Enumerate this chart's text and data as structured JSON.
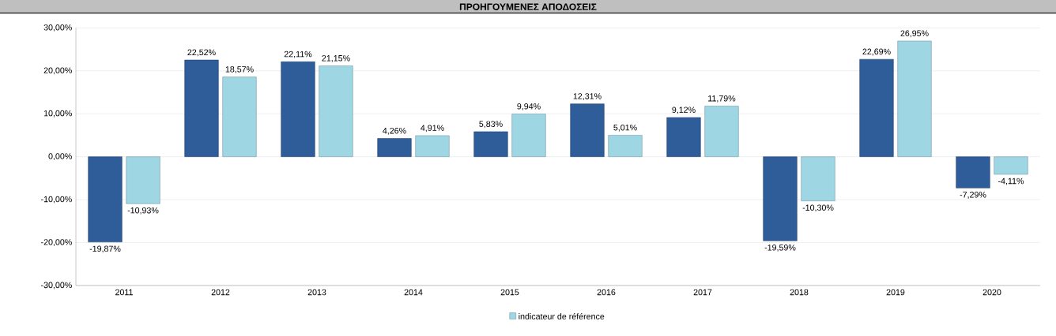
{
  "chart_data": {
    "type": "bar",
    "title": "ΠΡΟΗΓΟΥΜΕΝΕΣ ΑΠΟΔΟΣΕΙΣ",
    "categories": [
      "2011",
      "2012",
      "2013",
      "2014",
      "2015",
      "2016",
      "2017",
      "2018",
      "2019",
      "2020"
    ],
    "series": [
      {
        "color": "#2e5d9a",
        "values": [
          -19.87,
          22.52,
          22.11,
          4.26,
          5.83,
          12.31,
          9.12,
          -19.59,
          22.69,
          -7.29
        ],
        "value_labels": [
          "-19,87%",
          "22,52%",
          "22,11%",
          "4,26%",
          "5,83%",
          "12,31%",
          "9,12%",
          "-19,59%",
          "22,69%",
          "-7,29%"
        ]
      },
      {
        "name": "indicateur de référence",
        "color": "#9ed6e3",
        "values": [
          -10.93,
          18.57,
          21.15,
          4.91,
          9.94,
          5.01,
          11.79,
          -10.3,
          26.95,
          -4.11
        ],
        "value_labels": [
          "-10,93%",
          "18,57%",
          "21,15%",
          "4,91%",
          "9,94%",
          "5,01%",
          "11,79%",
          "-10,30%",
          "26,95%",
          "-4,11%"
        ]
      }
    ],
    "ylim": [
      -30,
      30
    ],
    "yticks": [
      {
        "value": -30,
        "label": "-30,00%"
      },
      {
        "value": -20,
        "label": "-20,00%"
      },
      {
        "value": -10,
        "label": "-10,00%"
      },
      {
        "value": 0,
        "label": "0,00%"
      },
      {
        "value": 10,
        "label": "10,00%"
      },
      {
        "value": 20,
        "label": "20,00%"
      },
      {
        "value": 30,
        "label": "30,00%"
      }
    ],
    "grid": "y",
    "legend": "bottom"
  }
}
